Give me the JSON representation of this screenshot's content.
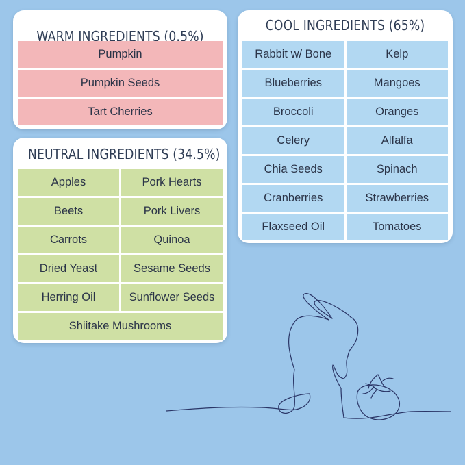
{
  "warm": {
    "title": "WARM INGREDIENTS (0.5%)",
    "items": [
      "Pumpkin",
      "Pumpkin Seeds",
      "Tart Cherries"
    ]
  },
  "cool": {
    "title": "COOL INGREDIENTS (65%)",
    "items": [
      "Rabbit w/ Bone",
      "Kelp",
      "Blueberries",
      "Mangoes",
      "Broccoli",
      "Oranges",
      "Celery",
      "Alfalfa",
      "Chia Seeds",
      "Spinach",
      "Cranberries",
      "Strawberries",
      "Flaxseed Oil",
      "Tomatoes"
    ]
  },
  "neutral": {
    "title": "NEUTRAL INGREDIENTS (34.5%)",
    "items": [
      "Apples",
      "Pork Hearts",
      "Beets",
      "Pork Livers",
      "Carrots",
      "Quinoa",
      "Dried Yeast",
      "Sesame Seeds",
      "Herring Oil",
      "Sunflower Seeds",
      "Shiitake Mushrooms"
    ]
  },
  "colors": {
    "background": "#9cc6ea",
    "warm_cell": "#f3b7b9",
    "cool_cell": "#b2d8f2",
    "neutral_cell": "#cfe0a4",
    "title_text": "#2f3d55",
    "line_art": "#2a3566"
  },
  "illustration": {
    "icon": "rabbit-and-tomato-line-art"
  }
}
